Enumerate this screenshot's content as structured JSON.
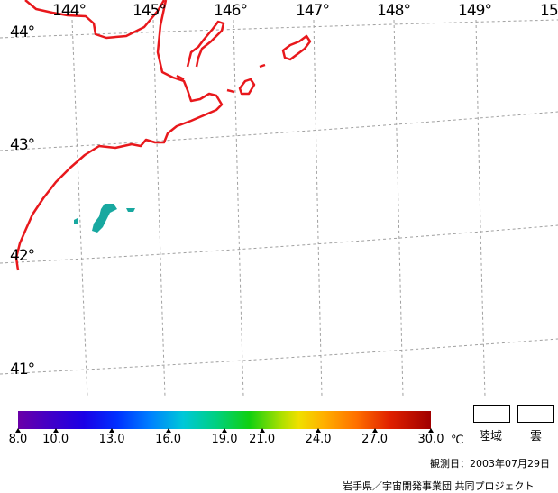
{
  "map": {
    "longitude_labels": [
      "144°",
      "145°",
      "146°",
      "147°",
      "148°",
      "149°",
      "15"
    ],
    "latitude_labels": [
      "44°",
      "43°",
      "42°",
      "41°"
    ],
    "coastline_color": "#e8181c",
    "grid_color": "#a0a0a0",
    "sst_patch_color": "#18a8a0"
  },
  "colorbar": {
    "tick_labels": [
      "8.0",
      "10.0",
      "13.0",
      "16.0",
      "19.0",
      "21.0",
      "24.0",
      "27.0",
      "30.0"
    ],
    "tick_values": [
      8.0,
      10.0,
      13.0,
      16.0,
      19.0,
      21.0,
      24.0,
      27.0,
      30.0
    ],
    "range": [
      8.0,
      30.0
    ],
    "unit": "℃"
  },
  "legend": {
    "land_label": "陸域",
    "cloud_label": "雲"
  },
  "footer": {
    "observation_date": "観測日：2003年07月29日",
    "credit": "岩手県／宇宙開発事業団 共同プロジェクト"
  }
}
